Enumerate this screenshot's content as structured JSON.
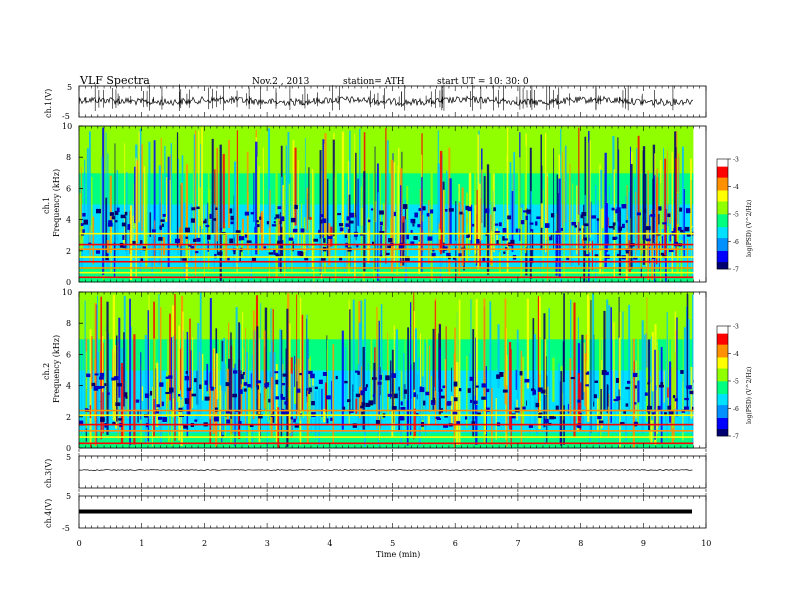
{
  "header": {
    "title": "VLF  Spectra",
    "date": "Nov.2  , 2013",
    "station": "station= ATH",
    "start": "start  UT =   10: 30: 0"
  },
  "colorbar": {
    "label": "log(PSD) (V^2/Hz)",
    "ticks": [
      "-3",
      "-4",
      "-5",
      "-6",
      "-7"
    ],
    "stops": [
      "#000070",
      "#0000ff",
      "#0090ff",
      "#00e0ff",
      "#00ff80",
      "#90ff00",
      "#ffff00",
      "#ff9000",
      "#ff0000",
      "#ffffff"
    ]
  },
  "chart_data": [
    {
      "type": "line",
      "name": "ch1_waveform",
      "ylabel": "ch.1(V)",
      "ylim": [
        -5,
        5
      ],
      "yticks": [
        "5",
        "-5"
      ],
      "note_baseline": 0
    },
    {
      "type": "heatmap",
      "name": "ch1_spectrogram",
      "ylabel_channel": "ch.1",
      "ylabel": "Frequency  (kHz)",
      "ylim": [
        0,
        10
      ],
      "yticks": [
        "0",
        "2",
        "4",
        "6",
        "8",
        "10"
      ],
      "xlim": [
        0,
        10
      ],
      "data_extent_min": 9.8,
      "color_scale": [
        -7,
        -3
      ],
      "steady_lines_khz": [
        0.3,
        0.6,
        0.9,
        1.3,
        1.6,
        2.1,
        2.4,
        3.1
      ]
    },
    {
      "type": "heatmap",
      "name": "ch2_spectrogram",
      "ylabel_channel": "ch.2",
      "ylabel": "Frequency  (kHz)",
      "ylim": [
        0,
        10
      ],
      "yticks": [
        "0",
        "2",
        "4",
        "6",
        "8",
        "10"
      ],
      "xlim": [
        0,
        10
      ],
      "data_extent_min": 9.8,
      "color_scale": [
        -7,
        -3
      ],
      "steady_lines_khz": [
        0.3,
        0.7,
        1.1,
        1.5,
        2.1,
        2.4
      ]
    },
    {
      "type": "line",
      "name": "ch3_waveform",
      "ylabel": "ch.3(V)",
      "ylim": [
        -5,
        5
      ],
      "yticks": [
        "5"
      ],
      "level": 0
    },
    {
      "type": "line",
      "name": "ch4_waveform",
      "ylabel": "ch.4(V)",
      "ylim": [
        -5,
        5
      ],
      "yticks": [
        "5",
        "-5"
      ],
      "level": 0
    }
  ],
  "xaxis": {
    "label": "Time  (min)",
    "ticks": [
      "0",
      "1",
      "2",
      "3",
      "4",
      "5",
      "6",
      "7",
      "8",
      "9",
      "10"
    ],
    "range": [
      0,
      10
    ]
  }
}
